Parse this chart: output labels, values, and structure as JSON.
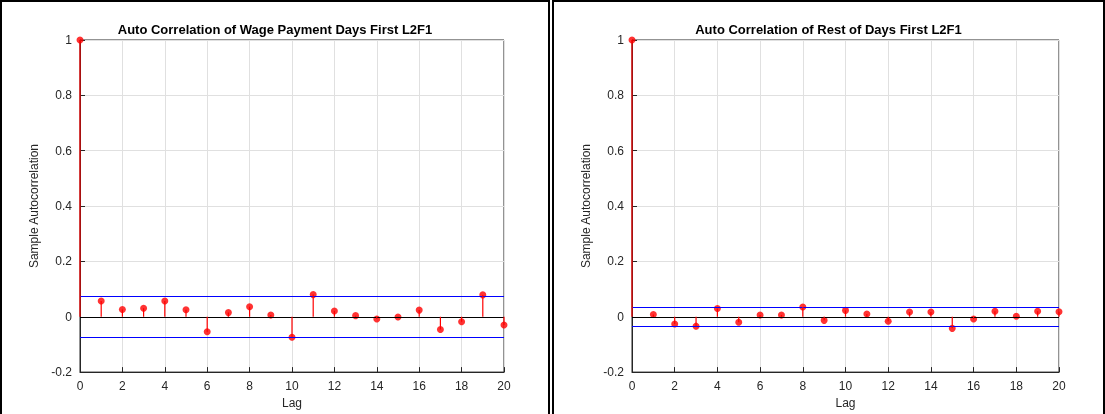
{
  "chart_data": [
    {
      "type": "lollipop",
      "title": "Auto Correlation of Wage Payment Days First L2F1",
      "xlabel": "Lag",
      "ylabel": "Sample Autocorrelation",
      "x": [
        0,
        1,
        2,
        3,
        4,
        5,
        6,
        7,
        8,
        9,
        10,
        11,
        12,
        13,
        14,
        15,
        16,
        17,
        18,
        19,
        20
      ],
      "series": [
        {
          "color": "#ff0000",
          "values": [
            1,
            0.057,
            0.026,
            0.031,
            0.057,
            0.025,
            -0.054,
            0.015,
            0.036,
            0.006,
            -0.074,
            0.08,
            0.021,
            0.004,
            -0.008,
            -0.001,
            0.024,
            -0.046,
            -0.018,
            0.079,
            -0.03
          ]
        }
      ],
      "ref_lines": [
        {
          "axis": "y",
          "value": 0.073,
          "color": "#0000ff"
        },
        {
          "axis": "y",
          "value": -0.073,
          "color": "#0000ff"
        },
        {
          "axis": "y",
          "value": 0,
          "color": "#000000"
        }
      ],
      "xlim": [
        0,
        20
      ],
      "xticks": [
        0,
        2,
        4,
        6,
        8,
        10,
        12,
        14,
        16,
        18,
        20
      ],
      "ylim": [
        -0.2,
        1
      ],
      "yticks": [
        -0.2,
        0,
        0.2,
        0.4,
        0.6,
        0.8,
        1
      ],
      "grid": true,
      "marker": "circle"
    },
    {
      "type": "lollipop",
      "title": "Auto Correlation of Rest of Days First L2F1",
      "xlabel": "Lag",
      "ylabel": "Sample Autocorrelation",
      "x": [
        0,
        1,
        2,
        3,
        4,
        5,
        6,
        7,
        8,
        9,
        10,
        11,
        12,
        13,
        14,
        15,
        16,
        17,
        18,
        19,
        20
      ],
      "series": [
        {
          "color": "#ff0000",
          "values": [
            1,
            0.008,
            -0.026,
            -0.034,
            0.03,
            -0.02,
            0.006,
            0.006,
            0.035,
            -0.013,
            0.023,
            0.01,
            -0.016,
            0.017,
            0.017,
            -0.042,
            -0.008,
            0.02,
            0.002,
            0.02,
            0.018
          ]
        }
      ],
      "ref_lines": [
        {
          "axis": "y",
          "value": 0.035,
          "color": "#0000ff"
        },
        {
          "axis": "y",
          "value": -0.035,
          "color": "#0000ff"
        },
        {
          "axis": "y",
          "value": 0,
          "color": "#000000"
        }
      ],
      "xlim": [
        0,
        20
      ],
      "xticks": [
        0,
        2,
        4,
        6,
        8,
        10,
        12,
        14,
        16,
        18,
        20
      ],
      "ylim": [
        -0.2,
        1
      ],
      "yticks": [
        -0.2,
        0,
        0.2,
        0.4,
        0.6,
        0.8,
        1
      ],
      "grid": true,
      "marker": "circle"
    }
  ]
}
